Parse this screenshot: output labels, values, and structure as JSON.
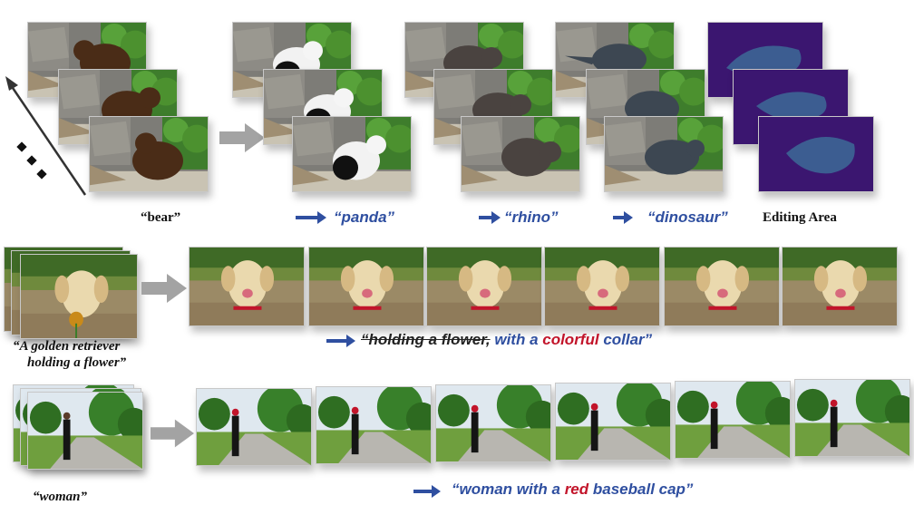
{
  "row1": {
    "source_caption": "“bear”",
    "edits": [
      {
        "prompt": "“panda”",
        "animal": "panda"
      },
      {
        "prompt": "“rhino”",
        "animal": "rhino"
      },
      {
        "prompt": "“dinosaur”",
        "animal": "dinosaur"
      }
    ],
    "editing_area_label": "Editing Area"
  },
  "row2": {
    "source_caption_line1": "“A golden retriever",
    "source_caption_line2": "holding a flower”",
    "prompt_struck": "“holding a flower,",
    "prompt_part1": " with a ",
    "prompt_red": "colorful",
    "prompt_part2": " collar”"
  },
  "row3": {
    "source_caption": "“woman”",
    "prompt_part1": "“woman with a ",
    "prompt_red": "red",
    "prompt_part2": " baseball cap”"
  },
  "colors": {
    "accent_blue": "#2f4fa0",
    "accent_red": "#c2142a",
    "heatmap": "#3b1670"
  }
}
